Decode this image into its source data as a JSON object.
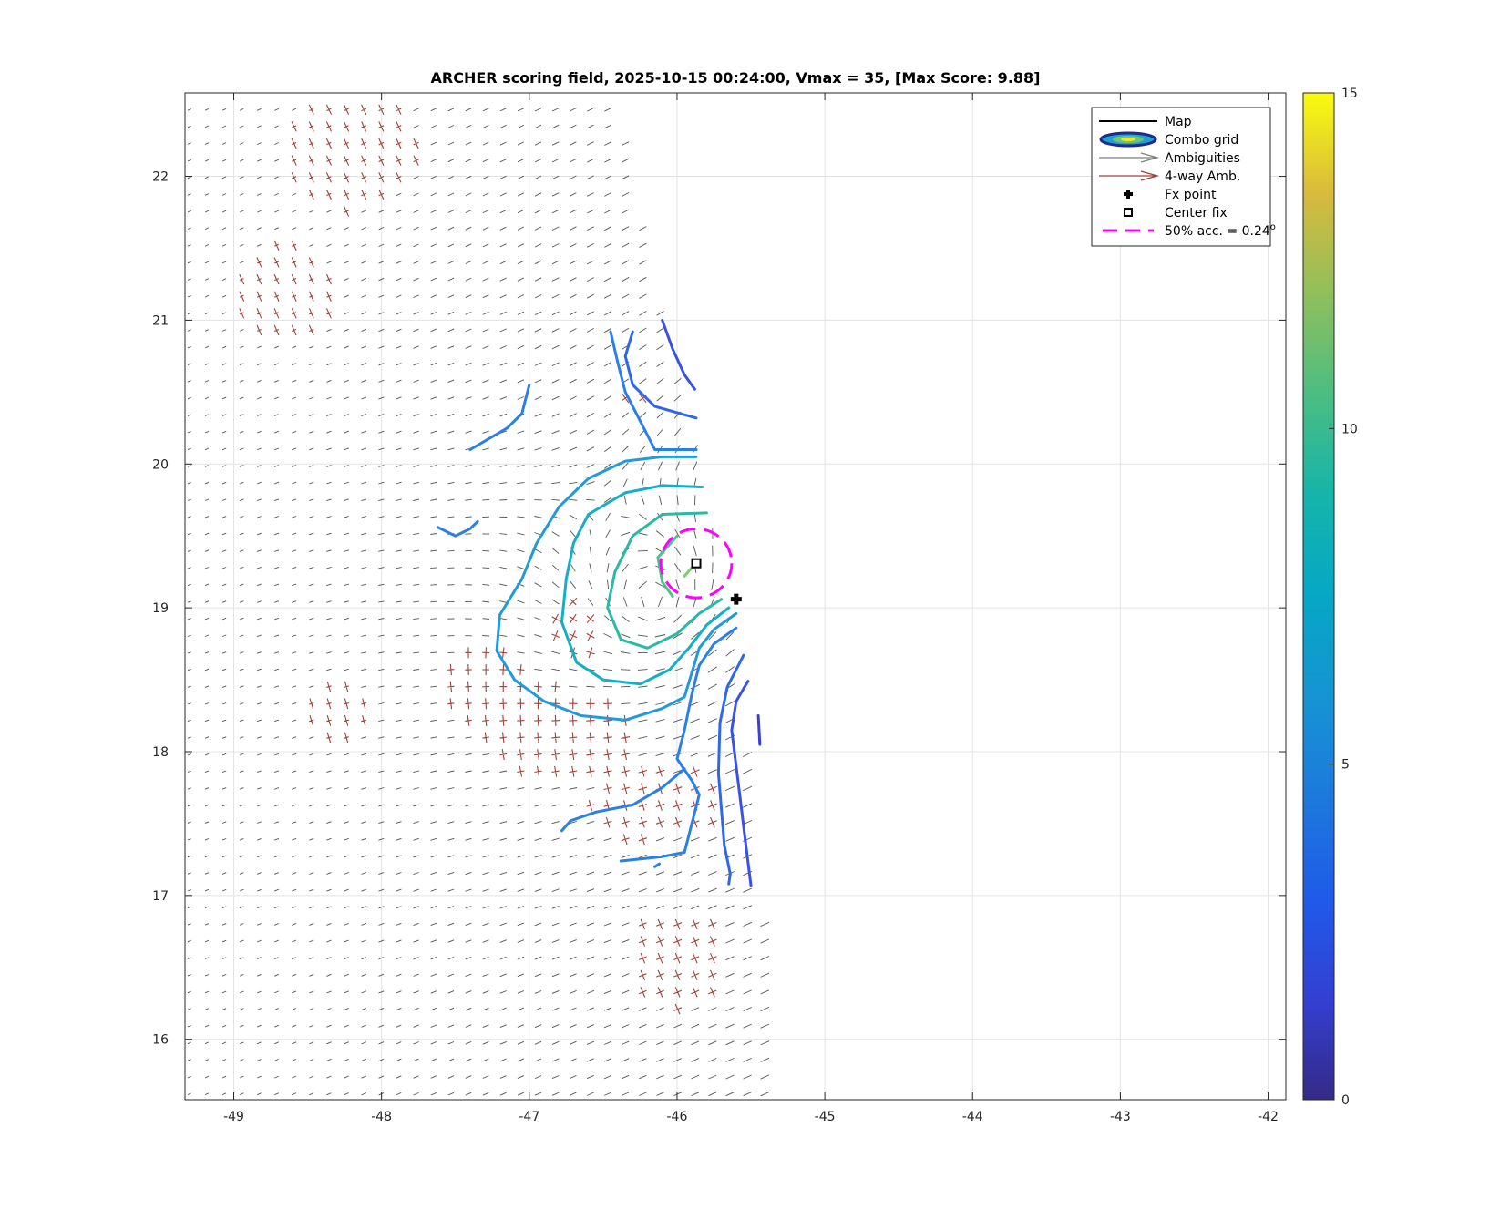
{
  "chart_data": {
    "type": "contour",
    "title": "ARCHER scoring field, 2025-10-15 00:24:00, Vmax = 35, [Max Score: 9.88]",
    "xlabel": "",
    "ylabel": "",
    "xlim": [
      -49.33,
      -41.88
    ],
    "ylim": [
      15.58,
      22.58
    ],
    "x_ticks": [
      -49,
      -48,
      -47,
      -46,
      -45,
      -44,
      -43,
      -42
    ],
    "y_ticks": [
      16,
      17,
      18,
      19,
      20,
      21,
      22
    ],
    "x_tick_labels": [
      "-49",
      "-48",
      "-47",
      "-46",
      "-45",
      "-44",
      "-43",
      "-42"
    ],
    "y_tick_labels": [
      "16",
      "17",
      "18",
      "19",
      "20",
      "21",
      "22"
    ],
    "grid": true,
    "legend_position": "top-right",
    "legend": [
      {
        "label": "Map",
        "style": "line",
        "color": "#000000"
      },
      {
        "label": "Combo grid",
        "style": "ellipse",
        "color": "#1f2a8c"
      },
      {
        "label": "Ambiguities",
        "style": "arrow",
        "color": "#7f7f7f"
      },
      {
        "label": "4-way Amb.",
        "style": "arrow",
        "color": "#a0403a"
      },
      {
        "label": "Fx point",
        "style": "plus-marker",
        "color": "#000000"
      },
      {
        "label": "Center fix",
        "style": "square-marker",
        "color": "#000000"
      },
      {
        "label": "50% acc. = 0.24",
        "label_sup": "o",
        "style": "dashed",
        "color": "#ff00ff"
      }
    ],
    "colorbar": {
      "min": 0,
      "max": 15,
      "ticks": [
        0,
        5,
        10,
        15
      ],
      "tick_labels": [
        "0",
        "5",
        "10",
        "15"
      ],
      "colormap": "parula"
    },
    "center_fix": {
      "lon": -45.87,
      "lat": 19.31
    },
    "fx_point": {
      "lon": -45.6,
      "lat": 19.06
    },
    "accuracy_circle": {
      "lon": -45.87,
      "lat": 19.31,
      "radius_deg": 0.24,
      "color": "#ff00ff"
    },
    "contours": [
      {
        "level": 1.5,
        "color": "#3b3fd6",
        "points": [
          [
            -45.45,
            18.25
          ],
          [
            -45.44,
            18.05
          ]
        ]
      },
      {
        "level": 2.5,
        "color": "#3a51e2",
        "points": [
          [
            -45.52,
            18.49
          ],
          [
            -45.6,
            18.35
          ],
          [
            -45.63,
            18.15
          ],
          [
            -45.6,
            17.9
          ],
          [
            -45.57,
            17.65
          ],
          [
            -45.54,
            17.4
          ],
          [
            -45.5,
            17.07
          ]
        ]
      },
      {
        "level": 2.5,
        "color": "#3a51e2",
        "points": [
          [
            -46.1,
            21.0
          ],
          [
            -46.03,
            20.8
          ],
          [
            -45.95,
            20.62
          ],
          [
            -45.88,
            20.52
          ]
        ]
      },
      {
        "level": 3.5,
        "color": "#2f67eb",
        "points": [
          [
            -45.55,
            18.67
          ],
          [
            -45.66,
            18.45
          ],
          [
            -45.71,
            18.2
          ],
          [
            -45.72,
            17.85
          ],
          [
            -45.7,
            17.6
          ],
          [
            -45.68,
            17.35
          ],
          [
            -45.64,
            17.15
          ],
          [
            -45.65,
            17.08
          ]
        ]
      },
      {
        "level": 3.5,
        "color": "#2f67eb",
        "points": [
          [
            -46.3,
            20.92
          ],
          [
            -46.35,
            20.75
          ],
          [
            -46.3,
            20.55
          ],
          [
            -46.15,
            20.4
          ],
          [
            -45.87,
            20.32
          ]
        ]
      },
      {
        "level": 4.5,
        "color": "#2a80e6",
        "points": [
          [
            -45.6,
            18.86
          ],
          [
            -45.75,
            18.75
          ],
          [
            -45.85,
            18.6
          ],
          [
            -45.9,
            18.4
          ],
          [
            -45.95,
            18.15
          ],
          [
            -46.0,
            17.95
          ],
          [
            -45.9,
            17.8
          ],
          [
            -45.85,
            17.7
          ],
          [
            -45.9,
            17.5
          ],
          [
            -45.95,
            17.3
          ],
          [
            -46.1,
            17.27
          ],
          [
            -46.38,
            17.24
          ]
        ]
      },
      {
        "level": 4.5,
        "color": "#2a80e6",
        "points": [
          [
            -46.45,
            20.92
          ],
          [
            -46.4,
            20.7
          ],
          [
            -46.35,
            20.5
          ],
          [
            -46.25,
            20.3
          ],
          [
            -46.15,
            20.1
          ],
          [
            -45.87,
            20.1
          ]
        ]
      },
      {
        "level": 4.5,
        "color": "#2a80e6",
        "points": [
          [
            -47.0,
            20.55
          ],
          [
            -47.05,
            20.35
          ],
          [
            -47.15,
            20.25
          ],
          [
            -47.4,
            20.1
          ]
        ]
      },
      {
        "level": 4.5,
        "color": "#2a80e6",
        "points": [
          [
            -47.62,
            19.56
          ],
          [
            -47.5,
            19.5
          ],
          [
            -47.4,
            19.55
          ],
          [
            -47.35,
            19.6
          ]
        ]
      },
      {
        "level": 4.5,
        "color": "#2a80e6",
        "points": [
          [
            -46.12,
            17.22
          ],
          [
            -46.15,
            17.2
          ]
        ]
      },
      {
        "level": 4.5,
        "color": "#2a80e6",
        "points": [
          [
            -45.95,
            17.88
          ],
          [
            -46.1,
            17.75
          ],
          [
            -46.3,
            17.63
          ],
          [
            -46.55,
            17.58
          ],
          [
            -46.72,
            17.52
          ],
          [
            -46.78,
            17.45
          ]
        ]
      },
      {
        "level": 5.5,
        "color": "#229ad9",
        "points": [
          [
            -45.6,
            18.96
          ],
          [
            -45.75,
            18.85
          ],
          [
            -45.85,
            18.72
          ],
          [
            -45.9,
            18.55
          ],
          [
            -45.95,
            18.38
          ],
          [
            -46.1,
            18.3
          ],
          [
            -46.35,
            18.22
          ],
          [
            -46.65,
            18.25
          ],
          [
            -46.9,
            18.35
          ],
          [
            -47.1,
            18.5
          ],
          [
            -47.22,
            18.7
          ],
          [
            -47.2,
            18.95
          ],
          [
            -47.05,
            19.2
          ],
          [
            -46.95,
            19.45
          ],
          [
            -46.8,
            19.7
          ],
          [
            -46.6,
            19.9
          ],
          [
            -46.35,
            20.02
          ],
          [
            -46.1,
            20.05
          ],
          [
            -45.87,
            20.05
          ]
        ]
      },
      {
        "level": 6.5,
        "color": "#14aec7",
        "points": [
          [
            -45.65,
            19.0
          ],
          [
            -45.8,
            18.88
          ],
          [
            -45.92,
            18.72
          ],
          [
            -46.05,
            18.57
          ],
          [
            -46.25,
            18.47
          ],
          [
            -46.5,
            18.5
          ],
          [
            -46.68,
            18.62
          ],
          [
            -46.78,
            18.9
          ],
          [
            -46.75,
            19.2
          ],
          [
            -46.7,
            19.45
          ],
          [
            -46.6,
            19.65
          ],
          [
            -46.35,
            19.8
          ],
          [
            -46.1,
            19.85
          ],
          [
            -45.83,
            19.84
          ]
        ]
      },
      {
        "level": 7.5,
        "color": "#2ab9a5",
        "points": [
          [
            -45.7,
            19.06
          ],
          [
            -45.85,
            18.96
          ],
          [
            -46.0,
            18.82
          ],
          [
            -46.2,
            18.72
          ],
          [
            -46.38,
            18.78
          ],
          [
            -46.47,
            19.0
          ],
          [
            -46.42,
            19.25
          ],
          [
            -46.3,
            19.5
          ],
          [
            -46.1,
            19.65
          ],
          [
            -45.8,
            19.66
          ]
        ]
      },
      {
        "level": 8.5,
        "color": "#4ac48a",
        "points": [
          [
            -46.03,
            19.08
          ],
          [
            -46.1,
            19.18
          ],
          [
            -46.13,
            19.35
          ],
          [
            -46.0,
            19.5
          ]
        ]
      },
      {
        "level": 9.5,
        "color": "#80cb6e",
        "points": [
          [
            -45.95,
            19.22
          ],
          [
            -45.9,
            19.28
          ]
        ]
      }
    ],
    "wind_field": {
      "swath_boundary": [
        [
          -49.33,
          22.58
        ],
        [
          -46.4,
          22.58
        ],
        [
          -46.1,
          21.0
        ],
        [
          -45.85,
          20.0
        ],
        [
          -45.65,
          19.0
        ],
        [
          -45.5,
          17.8
        ],
        [
          -45.4,
          16.8
        ],
        [
          -45.3,
          15.58
        ],
        [
          -49.33,
          15.58
        ]
      ],
      "vortex_center": {
        "lon": -46.15,
        "lat": 19.05
      },
      "ambiguity_color": "#555555",
      "four_way_color": "#a0403a",
      "four_way_regions": [
        {
          "lon": -48.3,
          "lat": 18.3,
          "r": 0.22
        },
        {
          "lon": -47.3,
          "lat": 18.45,
          "r": 0.28
        },
        {
          "lon": -46.95,
          "lat": 18.15,
          "r": 0.35
        },
        {
          "lon": -46.55,
          "lat": 18.05,
          "r": 0.3
        },
        {
          "lon": -46.7,
          "lat": 18.85,
          "r": 0.2
        },
        {
          "lon": -46.3,
          "lat": 17.65,
          "r": 0.3
        },
        {
          "lon": -45.9,
          "lat": 17.65,
          "r": 0.22
        },
        {
          "lon": -46.0,
          "lat": 16.55,
          "r": 0.35
        },
        {
          "lon": -48.65,
          "lat": 21.2,
          "r": 0.35
        },
        {
          "lon": -48.2,
          "lat": 22.2,
          "r": 0.45
        },
        {
          "lon": -46.3,
          "lat": 20.45,
          "r": 0.1
        }
      ]
    }
  }
}
